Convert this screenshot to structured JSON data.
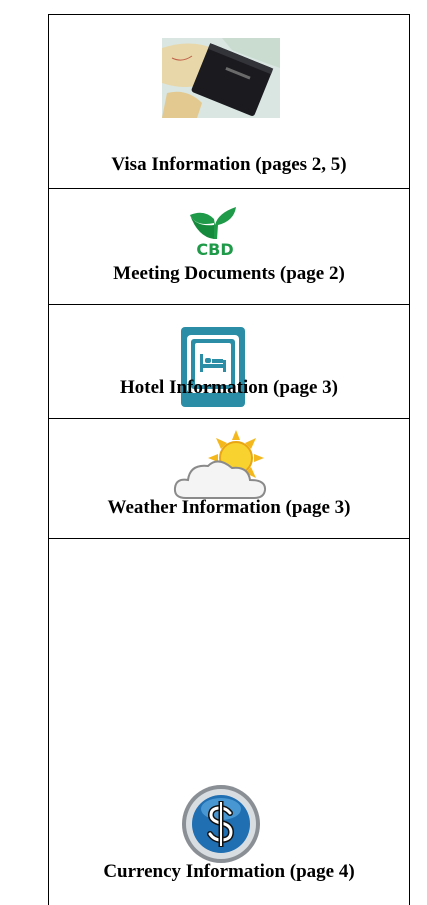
{
  "table": {
    "rows": [
      {
        "label": "Visa Information (pages 2, 5)"
      },
      {
        "label": "Meeting Documents (page 2)",
        "logo_text": "CBD"
      },
      {
        "label": "Hotel Information (page 3)"
      },
      {
        "label": "Weather Information (page 3)"
      },
      {
        "label": "Currency Information (page 4)"
      }
    ]
  }
}
